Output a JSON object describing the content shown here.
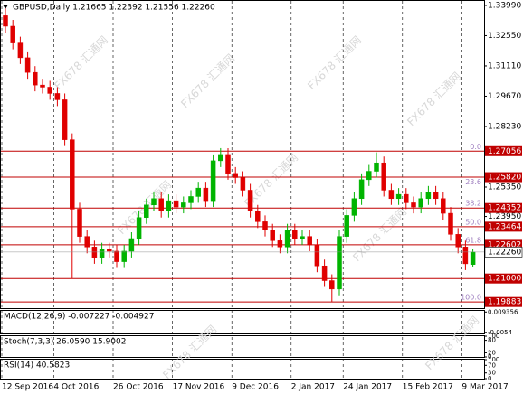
{
  "chart_data": {
    "type": "candlestick",
    "title": "GBPUSD,Daily 1.21665 1.22392 1.21556 1.22260",
    "watermark": "FX678 汇通网",
    "categories": [
      "12 Sep 2016",
      null,
      null,
      null,
      null,
      null,
      null,
      "4 Oct 2016",
      null,
      null,
      null,
      null,
      null,
      null,
      null,
      "26 Oct 2016",
      null,
      null,
      null,
      null,
      null,
      null,
      null,
      "17 Nov 2016",
      null,
      null,
      null,
      null,
      null,
      null,
      null,
      "9 Dec 2016",
      null,
      null,
      null,
      null,
      null,
      null,
      null,
      "2 Jan 2017",
      null,
      null,
      null,
      null,
      null,
      null,
      "24 Jan 2017",
      null,
      null,
      null,
      null,
      null,
      null,
      null,
      "15 Feb 2017",
      null,
      null,
      null,
      null,
      null,
      null,
      null,
      "9 Mar 2017",
      null
    ],
    "open": [
      1.335,
      1.33,
      1.322,
      1.315,
      1.308,
      1.302,
      1.301,
      1.298,
      1.295,
      1.276,
      1.243,
      1.23,
      1.225,
      1.22,
      1.224,
      1.223,
      1.218,
      1.223,
      1.229,
      1.239,
      1.245,
      1.248,
      1.242,
      1.247,
      1.244,
      1.246,
      1.249,
      1.253,
      1.247,
      1.266,
      1.269,
      1.26,
      1.258,
      1.252,
      1.242,
      1.237,
      1.233,
      1.228,
      1.225,
      1.233,
      1.229,
      1.23,
      1.226,
      1.216,
      1.209,
      1.205,
      1.23,
      1.24,
      1.248,
      1.257,
      1.261,
      1.265,
      1.252,
      1.248,
      1.25,
      1.246,
      1.244,
      1.248,
      1.251,
      1.248,
      1.241,
      1.231,
      1.225,
      1.21665
    ],
    "high": [
      1.3385,
      1.333,
      1.325,
      1.318,
      1.311,
      1.305,
      1.304,
      1.301,
      1.298,
      1.279,
      1.246,
      1.233,
      1.228,
      1.227,
      1.227,
      1.226,
      1.226,
      1.232,
      1.242,
      1.248,
      1.251,
      1.251,
      1.25,
      1.25,
      1.249,
      1.252,
      1.256,
      1.256,
      1.269,
      1.272,
      1.272,
      1.263,
      1.261,
      1.255,
      1.245,
      1.24,
      1.236,
      1.231,
      1.236,
      1.236,
      1.233,
      1.233,
      1.229,
      1.219,
      1.212,
      1.233,
      1.243,
      1.251,
      1.26,
      1.264,
      1.27,
      1.268,
      1.255,
      1.253,
      1.253,
      1.249,
      1.251,
      1.254,
      1.254,
      1.251,
      1.244,
      1.234,
      1.228,
      1.22392
    ],
    "low": [
      1.327,
      1.319,
      1.312,
      1.305,
      1.299,
      1.298,
      1.295,
      1.292,
      1.273,
      1.21,
      1.227,
      1.222,
      1.217,
      1.217,
      1.22,
      1.215,
      1.215,
      1.22,
      1.226,
      1.236,
      1.242,
      1.239,
      1.239,
      1.241,
      1.241,
      1.243,
      1.246,
      1.244,
      1.244,
      1.263,
      1.257,
      1.255,
      1.249,
      1.239,
      1.234,
      1.23,
      1.225,
      1.222,
      1.222,
      1.226,
      1.226,
      1.223,
      1.213,
      1.206,
      1.199,
      1.202,
      1.227,
      1.237,
      1.245,
      1.254,
      1.258,
      1.249,
      1.245,
      1.245,
      1.243,
      1.241,
      1.241,
      1.245,
      1.245,
      1.238,
      1.228,
      1.222,
      1.214,
      1.21556
    ],
    "close": [
      1.33,
      1.322,
      1.315,
      1.308,
      1.302,
      1.301,
      1.298,
      1.295,
      1.276,
      1.243,
      1.23,
      1.225,
      1.22,
      1.224,
      1.223,
      1.218,
      1.223,
      1.229,
      1.239,
      1.245,
      1.248,
      1.242,
      1.247,
      1.244,
      1.246,
      1.249,
      1.253,
      1.247,
      1.266,
      1.269,
      1.26,
      1.258,
      1.252,
      1.242,
      1.237,
      1.233,
      1.228,
      1.225,
      1.233,
      1.229,
      1.23,
      1.226,
      1.216,
      1.209,
      1.205,
      1.23,
      1.24,
      1.248,
      1.257,
      1.261,
      1.265,
      1.252,
      1.248,
      1.25,
      1.246,
      1.244,
      1.248,
      1.251,
      1.248,
      1.241,
      1.231,
      1.225,
      1.217,
      1.2226
    ],
    "up_color": "#00b400",
    "down_color": "#e00000",
    "level_color": "#c00000",
    "ylim": [
      1.1959,
      1.3416
    ],
    "yticks": [
      {
        "value": 1.3399,
        "label": "1.33990"
      },
      {
        "value": 1.3255,
        "label": "1.32550"
      },
      {
        "value": 1.3111,
        "label": "1.31110"
      },
      {
        "value": 1.2967,
        "label": "1.29670"
      },
      {
        "value": 1.2823,
        "label": "1.28230"
      },
      {
        "value": 1.2535,
        "label": "1.25350"
      },
      {
        "value": 1.2395,
        "label": "1.23950"
      },
      {
        "value": 1.1983,
        "label": "1.19830"
      }
    ],
    "levels": [
      1.27056,
      {
        "value": 1.2582,
        "label": "1.25820"
      },
      1.24352,
      1.23464,
      1.22602,
      {
        "value": 1.21,
        "label": "1.21000"
      },
      1.19883
    ],
    "current_price": {
      "value": 1.2226,
      "label": "1.22260"
    },
    "fib_labels": [
      {
        "label": "0.0",
        "price": 1.27056
      },
      {
        "label": "23.6",
        "price": 1.2536
      },
      {
        "label": "38.2",
        "price": 1.24352
      },
      {
        "label": "50.0",
        "price": 1.23464
      },
      {
        "label": "61.8",
        "price": 1.22602
      },
      {
        "label": "100.0",
        "price": 1.19883
      }
    ],
    "panels": [
      {
        "label": "MACD(12,26,9) -0.007227 -0.004927",
        "ylim": [
          -0.0062,
          0.0102
        ],
        "yticks": [
          0.009356,
          -0.0054
        ]
      },
      {
        "label": "Stoch(7,3,3) 26.0590 15.9002",
        "ylim": [
          0,
          100
        ],
        "yticks": [
          100,
          80,
          20,
          0
        ]
      },
      {
        "label": "RSI(14) 40.5823",
        "ylim": [
          0,
          100
        ],
        "yticks": [
          100,
          70,
          30,
          0
        ]
      }
    ]
  }
}
